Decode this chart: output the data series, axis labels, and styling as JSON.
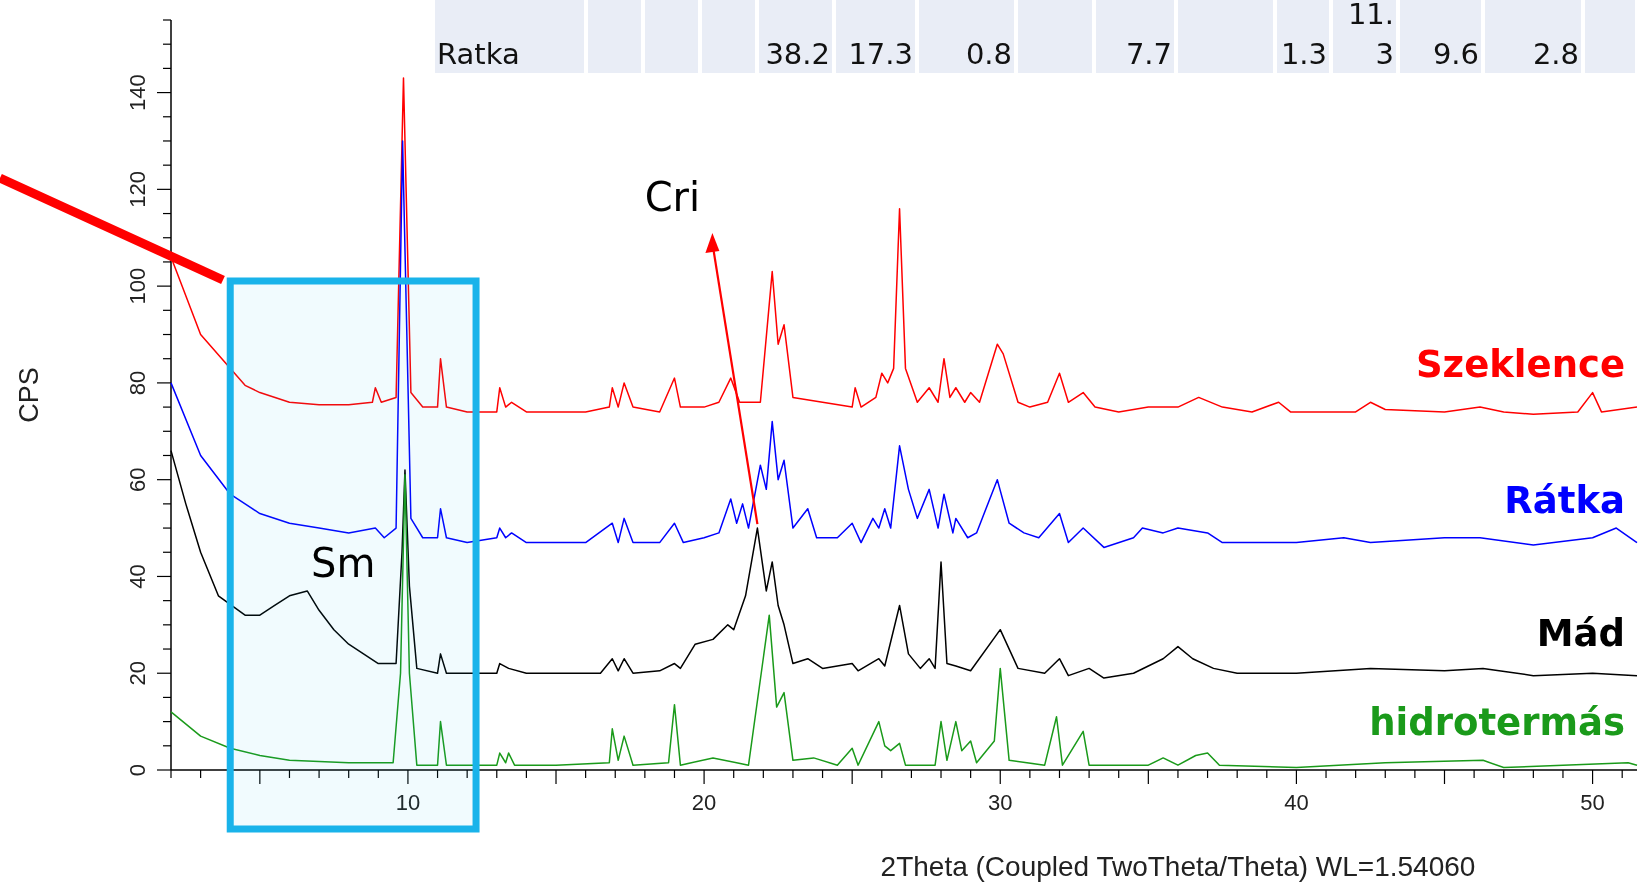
{
  "chart_data": {
    "type": "line",
    "xlabel": "2Theta (Coupled TwoTheta/Theta) WL=1.54060",
    "ylabel": "CPS",
    "xlim": [
      2,
      51.5
    ],
    "ylim": [
      0,
      155
    ],
    "xticks": [
      {
        "value": 2,
        "label": null
      },
      {
        "value": 3,
        "label": null
      },
      {
        "value": 4,
        "label": null
      },
      {
        "value": 5,
        "label": null
      },
      {
        "value": 6,
        "label": null
      },
      {
        "value": 7,
        "label": null
      },
      {
        "value": 8,
        "label": null
      },
      {
        "value": 9,
        "label": null
      },
      10,
      {
        "value": 11,
        "label": null
      },
      {
        "value": 12,
        "label": null
      },
      {
        "value": 13,
        "label": null
      },
      {
        "value": 14,
        "label": null
      },
      {
        "value": 15,
        "label": null
      },
      {
        "value": 16,
        "label": null
      },
      {
        "value": 17,
        "label": null
      },
      {
        "value": 18,
        "label": null
      },
      {
        "value": 19,
        "label": null
      },
      20,
      {
        "value": 21,
        "label": null
      },
      {
        "value": 22,
        "label": null
      },
      {
        "value": 23,
        "label": null
      },
      {
        "value": 24,
        "label": null
      },
      {
        "value": 25,
        "label": null
      },
      {
        "value": 26,
        "label": null
      },
      {
        "value": 27,
        "label": null
      },
      {
        "value": 28,
        "label": null
      },
      {
        "value": 29,
        "label": null
      },
      30,
      {
        "value": 31,
        "label": null
      },
      {
        "value": 32,
        "label": null
      },
      {
        "value": 33,
        "label": null
      },
      {
        "value": 34,
        "label": null
      },
      {
        "value": 35,
        "label": null
      },
      {
        "value": 36,
        "label": null
      },
      {
        "value": 37,
        "label": null
      },
      {
        "value": 38,
        "label": null
      },
      {
        "value": 39,
        "label": null
      },
      40,
      {
        "value": 41,
        "label": null
      },
      {
        "value": 42,
        "label": null
      },
      {
        "value": 43,
        "label": null
      },
      {
        "value": 44,
        "label": null
      },
      {
        "value": 45,
        "label": null
      },
      {
        "value": 46,
        "label": null
      },
      {
        "value": 47,
        "label": null
      },
      {
        "value": 48,
        "label": null
      },
      {
        "value": 49,
        "label": null
      },
      50,
      {
        "value": 51,
        "label": null
      }
    ],
    "yticks": [
      0,
      {
        "value": 5,
        "label": null
      },
      {
        "value": 10,
        "label": null
      },
      {
        "value": 15,
        "label": null
      },
      20,
      {
        "value": 25,
        "label": null
      },
      {
        "value": 30,
        "label": null
      },
      {
        "value": 35,
        "label": null
      },
      40,
      {
        "value": 45,
        "label": null
      },
      {
        "value": 50,
        "label": null
      },
      {
        "value": 55,
        "label": null
      },
      60,
      {
        "value": 65,
        "label": null
      },
      {
        "value": 70,
        "label": null
      },
      {
        "value": 75,
        "label": null
      },
      80,
      {
        "value": 85,
        "label": null
      },
      {
        "value": 90,
        "label": null
      },
      {
        "value": 95,
        "label": null
      },
      100,
      {
        "value": 105,
        "label": null
      },
      {
        "value": 110,
        "label": null
      },
      {
        "value": 115,
        "label": null
      },
      120,
      {
        "value": 125,
        "label": null
      },
      {
        "value": 130,
        "label": null
      },
      {
        "value": 135,
        "label": null
      },
      140,
      {
        "value": 145,
        "label": null
      },
      {
        "value": 150,
        "label": null
      },
      {
        "value": 155,
        "label": null
      }
    ],
    "bands": [
      {
        "axis": "x",
        "from": 4,
        "to": 12.3,
        "color": "#19b3ea"
      }
    ],
    "grid": false,
    "legend": false,
    "marker": "none",
    "line_style": "solid",
    "annotations": [
      "Ratka",
      "38.2",
      "17.3",
      "0.8",
      "7.7",
      "1.3",
      "11.3",
      "9.6",
      "2.8",
      {
        "text": "Sm",
        "x": 6.6,
        "y": 37
      },
      {
        "text": "Cri",
        "x": 21.8,
        "y": 50
      }
    ],
    "series": [
      {
        "name": "Szeklence",
        "color": "#ff0000",
        "x": [
          2,
          3,
          4.5,
          5,
          6,
          7,
          8,
          8.8,
          8.9,
          9.1,
          9.6,
          9.85,
          10.1,
          10.5,
          11,
          11.1,
          11.3,
          12,
          13,
          13.1,
          13.3,
          13.5,
          14,
          15,
          16,
          16.8,
          16.9,
          17.1,
          17.3,
          17.6,
          18.5,
          19,
          19.2,
          20,
          20.5,
          20.9,
          21.2,
          21.9,
          22.3,
          22.5,
          22.7,
          23,
          24,
          25,
          25.1,
          25.3,
          25.8,
          26,
          26.2,
          26.4,
          26.6,
          26.8,
          27.2,
          27.6,
          27.9,
          28.1,
          28.3,
          28.5,
          28.8,
          29,
          29.3,
          29.9,
          30.1,
          30.6,
          31,
          31.6,
          32,
          32.3,
          32.8,
          33.2,
          34,
          35,
          36,
          36.7,
          37.5,
          38.5,
          39.4,
          39.8,
          42,
          42.5,
          43,
          45,
          46.2,
          47,
          48,
          49.5,
          50,
          50.3,
          51.5
        ],
        "values": [
          106,
          90,
          79.5,
          78,
          76,
          75.5,
          75.5,
          76,
          79,
          76,
          77,
          143,
          78,
          75,
          75,
          85,
          75,
          74,
          74,
          79,
          75,
          76,
          74,
          74,
          74,
          75,
          79,
          75,
          80,
          75,
          74,
          81,
          75,
          75,
          76,
          81,
          76,
          76,
          103,
          88,
          92,
          77,
          76,
          75,
          79,
          75,
          77,
          82,
          80,
          83,
          116,
          83,
          76,
          79,
          76,
          85,
          77,
          79,
          76,
          78,
          76,
          88,
          86,
          76,
          75,
          76,
          82,
          76,
          78,
          75,
          74,
          75,
          75,
          77,
          75,
          74,
          76,
          74,
          74,
          76,
          74.5,
          74,
          75,
          74,
          73.5,
          74,
          78,
          74,
          75
        ]
      },
      {
        "name": "Rátka",
        "color": "#0000ff",
        "x": [
          2,
          3,
          4,
          5,
          6,
          7,
          8,
          8.9,
          9.2,
          9.6,
          9.82,
          10.1,
          10.5,
          11,
          11.1,
          11.3,
          12,
          13,
          13.1,
          13.3,
          13.5,
          14,
          15,
          16,
          16.9,
          17.1,
          17.3,
          17.6,
          18.5,
          19,
          19.3,
          20,
          20.5,
          20.9,
          21.1,
          21.3,
          21.5,
          21.9,
          22.1,
          22.3,
          22.5,
          22.7,
          23,
          23.5,
          23.8,
          24.5,
          25,
          25.3,
          25.7,
          25.9,
          26.1,
          26.3,
          26.6,
          26.9,
          27.2,
          27.6,
          27.9,
          28.1,
          28.4,
          28.5,
          28.9,
          29.2,
          29.9,
          30.3,
          30.8,
          31.3,
          32,
          32.3,
          32.8,
          33.5,
          34.5,
          34.8,
          35.5,
          36,
          37,
          37.5,
          40,
          41.6,
          42.5,
          45,
          46.2,
          48,
          50,
          50.8,
          51.5
        ],
        "values": [
          80,
          65,
          57,
          53,
          51,
          50,
          49,
          50,
          48,
          50,
          130,
          52,
          48,
          48,
          54,
          48,
          47,
          48,
          50,
          48,
          49,
          47,
          47,
          47,
          51,
          47,
          52,
          47,
          47,
          51,
          47,
          48,
          49,
          56,
          51,
          55,
          50,
          63,
          58,
          72,
          60,
          64,
          50,
          54,
          48,
          48,
          51,
          47,
          52,
          50,
          54,
          50,
          67,
          58,
          52,
          58,
          50,
          57,
          49,
          52,
          48,
          49,
          60,
          51,
          49,
          48,
          53,
          47,
          50,
          46,
          48,
          50,
          49,
          50,
          49,
          47,
          47,
          48,
          47,
          48,
          48,
          46.5,
          48,
          50,
          47
        ]
      },
      {
        "name": "Mád",
        "color": "#000000",
        "x": [
          2,
          2.5,
          3,
          3.6,
          4.5,
          5,
          5.5,
          6,
          6.6,
          7,
          7.5,
          8,
          9,
          9.6,
          9.8,
          9.9,
          10.05,
          10.3,
          11,
          11.1,
          11.3,
          13,
          13.1,
          13.4,
          14,
          16.5,
          16.9,
          17.1,
          17.3,
          17.6,
          18.5,
          19,
          19.2,
          19.7,
          20.3,
          20.8,
          21,
          21.4,
          21.8,
          22.1,
          22.3,
          22.5,
          22.7,
          23,
          23.5,
          24,
          25,
          25.2,
          25.9,
          26.1,
          26.6,
          26.9,
          27.3,
          27.6,
          27.8,
          28,
          28.2,
          28.5,
          29,
          30,
          30.6,
          31.5,
          32,
          32.3,
          33,
          33.5,
          34.5,
          35.5,
          36,
          36.5,
          37.2,
          38,
          40,
          42.5,
          45,
          46.3,
          48,
          50,
          51.5
        ],
        "values": [
          66,
          55,
          45,
          36,
          32,
          32,
          34,
          36,
          37,
          33,
          29,
          26,
          22,
          22,
          45,
          62,
          38,
          21,
          20,
          24,
          20,
          20,
          22,
          21,
          20,
          20,
          23,
          20.5,
          23,
          20,
          20.5,
          22,
          21,
          26,
          27,
          30,
          29,
          36,
          50,
          37,
          43,
          34,
          30,
          22,
          23,
          21,
          22,
          20.5,
          23,
          21.5,
          34,
          24,
          21,
          23,
          21,
          43,
          22,
          21.5,
          20.5,
          29,
          21,
          20,
          23,
          19.5,
          21,
          19,
          20,
          23,
          25.5,
          23,
          21,
          20,
          20,
          21,
          20.5,
          21,
          19.5,
          20,
          19.5
        ]
      },
      {
        "name": "hidrotermás",
        "color": "#1a9a1a",
        "x": [
          2,
          3,
          4,
          5,
          6,
          8,
          9.5,
          9.75,
          9.9,
          10.05,
          10.3,
          11,
          11.1,
          11.3,
          13,
          13.1,
          13.3,
          13.4,
          13.6,
          15,
          16.8,
          16.9,
          17.1,
          17.3,
          17.6,
          18.8,
          19,
          19.2,
          20.3,
          21.5,
          22.2,
          22.45,
          22.7,
          23,
          23.7,
          24.5,
          25,
          25.2,
          25.9,
          26.1,
          26.3,
          26.6,
          26.8,
          27.8,
          28,
          28.2,
          28.5,
          28.7,
          29,
          29.2,
          29.8,
          30,
          30.3,
          31.5,
          31.9,
          32.1,
          32.8,
          33,
          35,
          35.5,
          36,
          36.6,
          37,
          37.4,
          40,
          43,
          46.3,
          47,
          51.2,
          51.5
        ],
        "values": [
          12,
          7,
          4.5,
          3,
          2,
          1.5,
          1.5,
          20,
          61,
          20,
          1,
          1,
          10,
          1,
          1,
          3.5,
          1.5,
          3.5,
          1,
          1,
          1.5,
          8.5,
          2,
          7,
          1,
          1.5,
          13.5,
          1,
          2.5,
          1,
          32,
          13,
          16,
          2,
          2.5,
          1,
          4.5,
          1,
          10,
          5,
          4,
          5.5,
          1,
          1,
          10,
          2,
          10,
          4,
          6,
          1.5,
          6,
          21,
          2,
          1,
          11,
          1,
          8,
          1,
          1,
          2.5,
          1,
          3,
          3.5,
          1,
          0.5,
          1.5,
          2,
          0.5,
          1.5,
          1
        ]
      }
    ]
  }
}
